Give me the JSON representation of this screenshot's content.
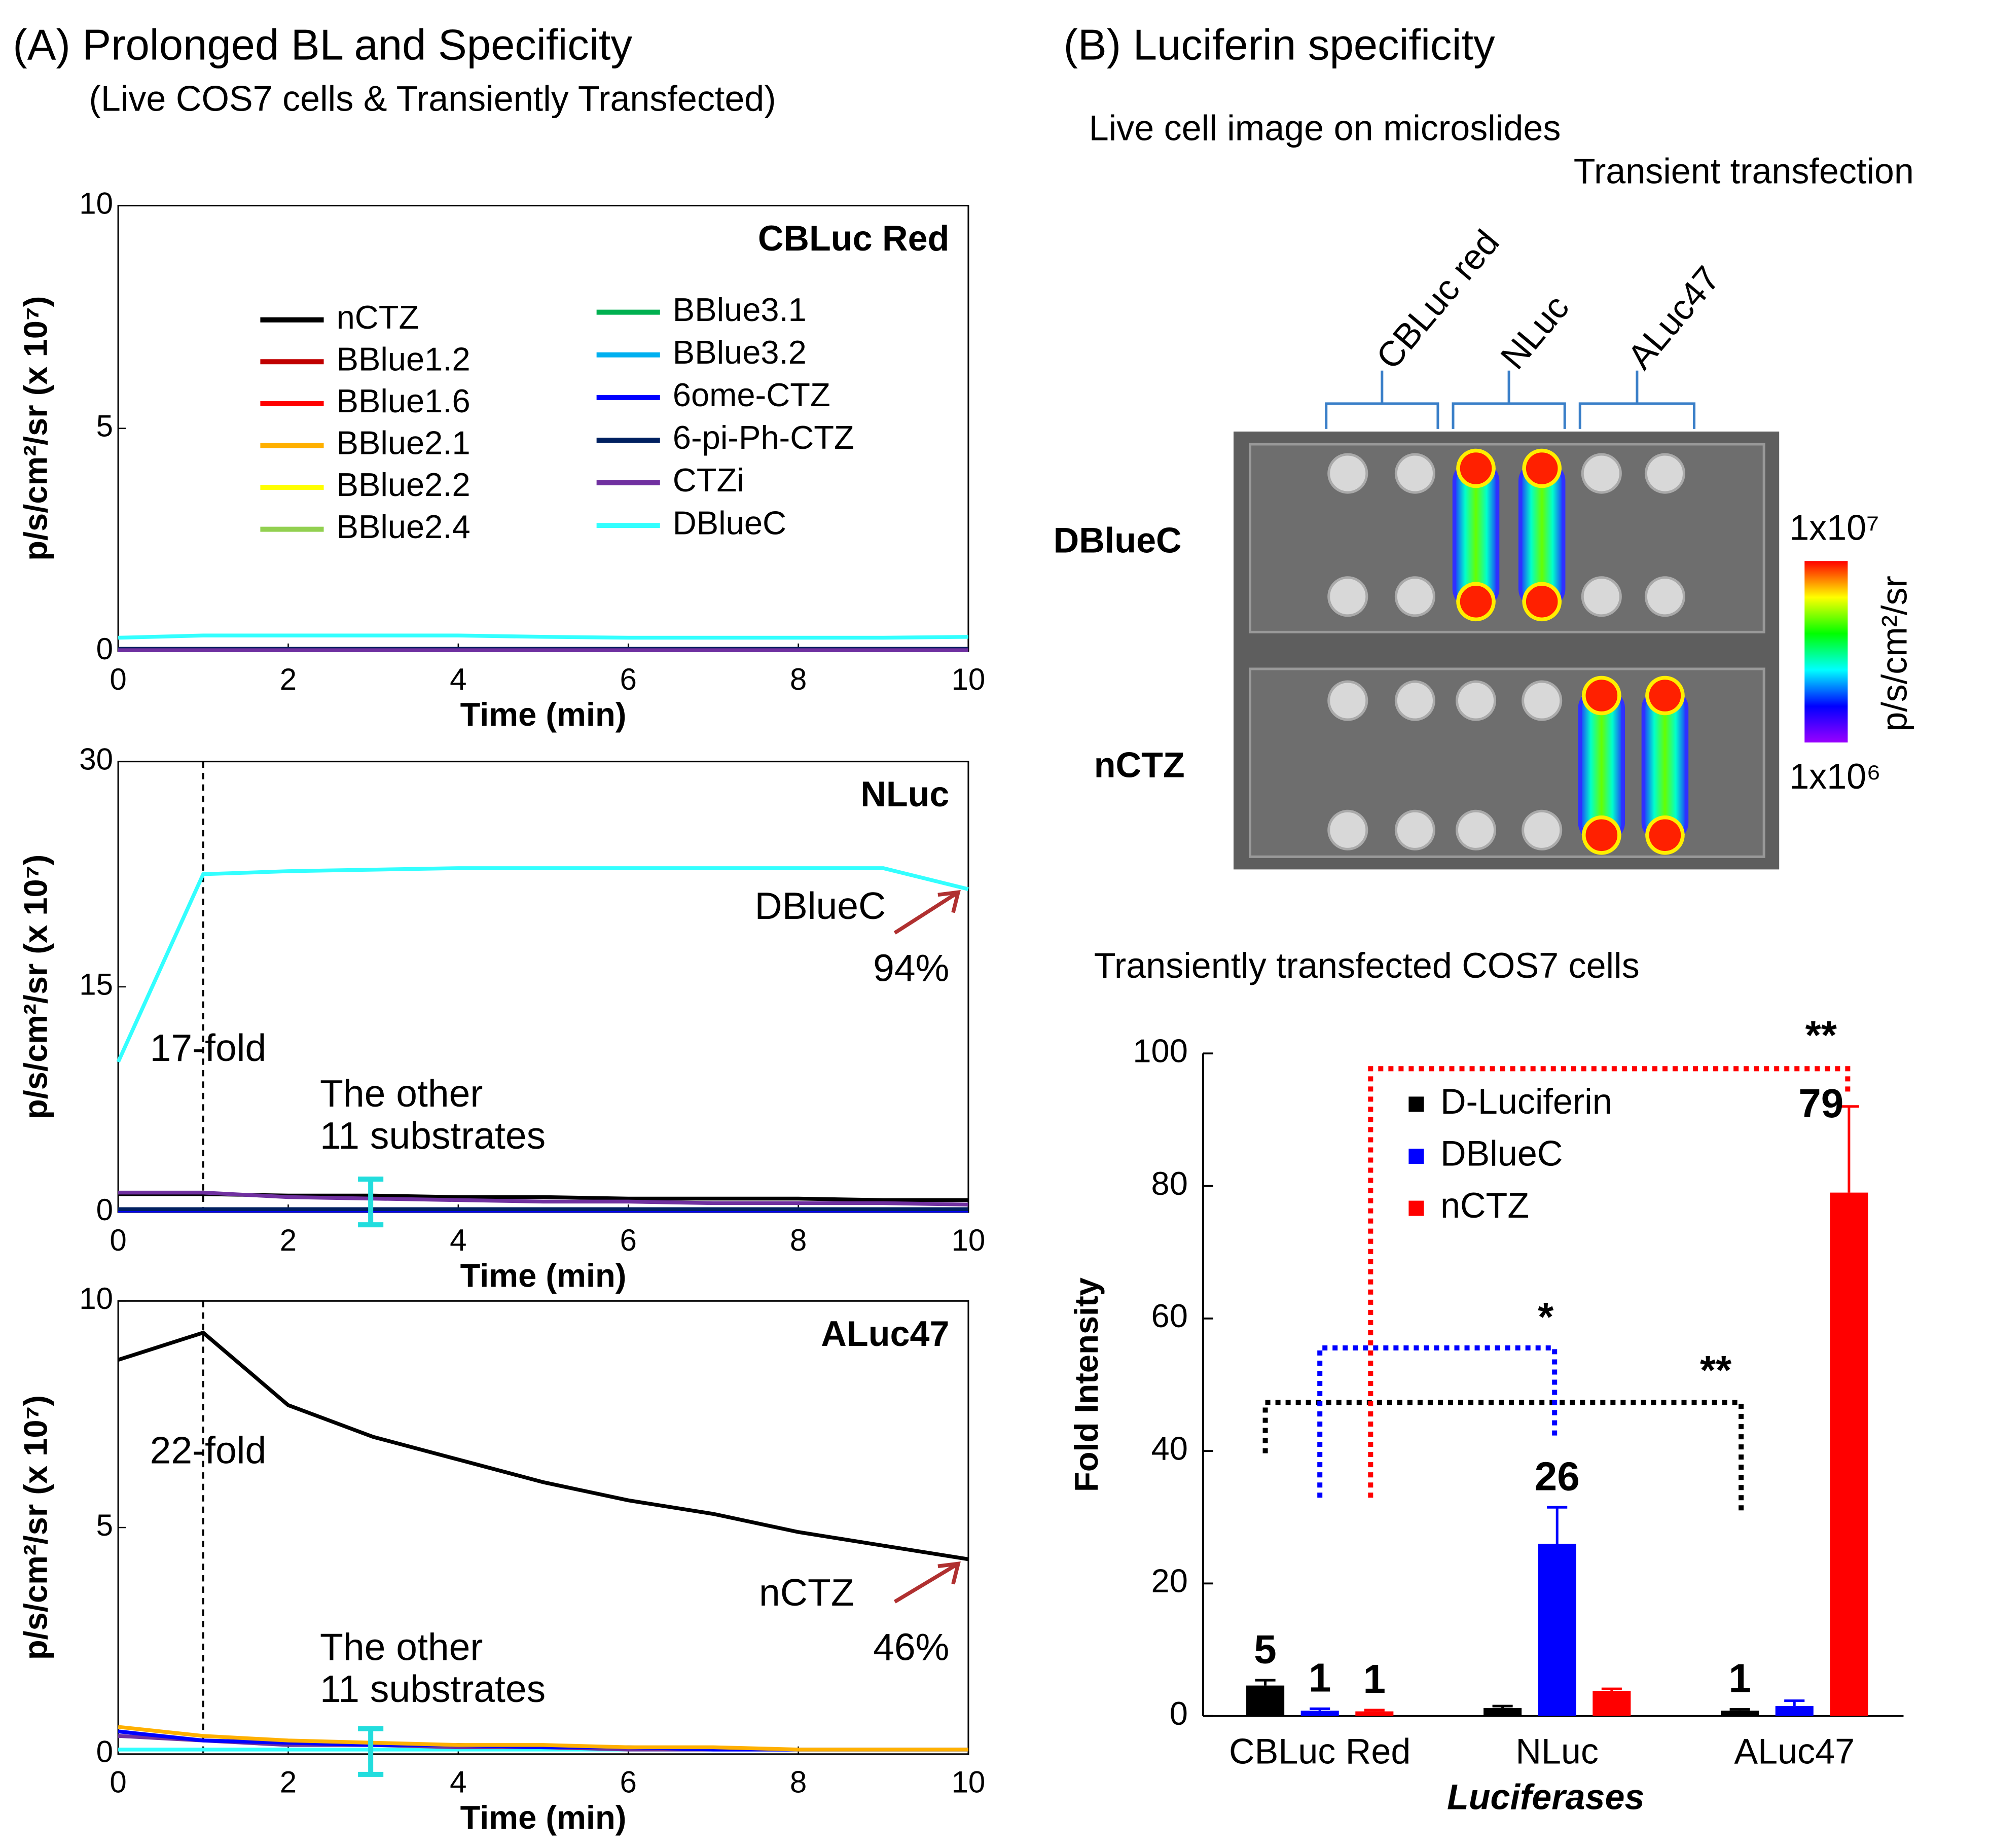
{
  "panel_a": {
    "title": "(A) Prolonged BL and Specificity",
    "subtitle": "(Live COS7 cells & Transiently Transfected)"
  },
  "panel_b": {
    "title": "(B) Luciferin specificity",
    "image_caption": "Live cell image on microslides",
    "image_subtitle": "Transient transfection",
    "columns": [
      "CBLuc red",
      "NLuc",
      "ALuc47"
    ],
    "rows": [
      "DBlueC",
      "nCTZ"
    ],
    "colorbar": {
      "max_label": "1x10⁷",
      "min_label": "1x10⁶",
      "label": "p/s/cm²/sr"
    }
  },
  "chart_data": [
    {
      "type": "line",
      "title": "CBLuc Red",
      "xlabel": "Time (min)",
      "ylabel": "p/s/cm²/sr (x 10⁷)",
      "x": [
        0,
        1,
        2,
        3,
        4,
        5,
        6,
        7,
        8,
        9,
        10
      ],
      "xlim": [
        0,
        10
      ],
      "xticks": [
        0,
        2,
        4,
        6,
        8,
        10
      ],
      "ylim": [
        0,
        10
      ],
      "yticks": [
        0,
        5,
        10
      ],
      "series": [
        {
          "name": "nCTZ",
          "color": "#000000",
          "values": [
            0.05,
            0.05,
            0.05,
            0.05,
            0.05,
            0.05,
            0.05,
            0.05,
            0.05,
            0.05,
            0.05
          ]
        },
        {
          "name": "BBlue1.2",
          "color": "#c00000",
          "values": [
            0.02,
            0.02,
            0.02,
            0.02,
            0.02,
            0.02,
            0.02,
            0.02,
            0.02,
            0.02,
            0.02
          ]
        },
        {
          "name": "BBlue1.6",
          "color": "#ff0000",
          "values": [
            0.02,
            0.02,
            0.02,
            0.02,
            0.02,
            0.02,
            0.02,
            0.02,
            0.02,
            0.02,
            0.02
          ]
        },
        {
          "name": "BBlue2.1",
          "color": "#ffb000",
          "values": [
            0.02,
            0.02,
            0.02,
            0.02,
            0.02,
            0.02,
            0.02,
            0.02,
            0.02,
            0.02,
            0.02
          ]
        },
        {
          "name": "BBlue2.2",
          "color": "#ffff00",
          "values": [
            0.02,
            0.02,
            0.02,
            0.02,
            0.02,
            0.02,
            0.02,
            0.02,
            0.02,
            0.02,
            0.02
          ]
        },
        {
          "name": "BBlue2.4",
          "color": "#92d050",
          "values": [
            0.02,
            0.02,
            0.02,
            0.02,
            0.02,
            0.02,
            0.02,
            0.02,
            0.02,
            0.02,
            0.02
          ]
        },
        {
          "name": "BBlue3.1",
          "color": "#00b050",
          "values": [
            0.02,
            0.02,
            0.02,
            0.02,
            0.02,
            0.02,
            0.02,
            0.02,
            0.02,
            0.02,
            0.02
          ]
        },
        {
          "name": "BBlue3.2",
          "color": "#00b0f0",
          "values": [
            0.02,
            0.02,
            0.02,
            0.02,
            0.02,
            0.02,
            0.02,
            0.02,
            0.02,
            0.02,
            0.02
          ]
        },
        {
          "name": "6ome-CTZ",
          "color": "#0000ff",
          "values": [
            0.02,
            0.02,
            0.02,
            0.02,
            0.02,
            0.02,
            0.02,
            0.02,
            0.02,
            0.02,
            0.02
          ]
        },
        {
          "name": "6-pi-Ph-CTZ",
          "color": "#002060",
          "values": [
            0.05,
            0.05,
            0.05,
            0.05,
            0.05,
            0.05,
            0.05,
            0.05,
            0.05,
            0.05,
            0.05
          ]
        },
        {
          "name": "CTZi",
          "color": "#7030a0",
          "values": [
            0.02,
            0.02,
            0.02,
            0.02,
            0.02,
            0.02,
            0.02,
            0.02,
            0.02,
            0.02,
            0.02
          ]
        },
        {
          "name": "DBlueC",
          "color": "#33ffff",
          "values": [
            0.3,
            0.35,
            0.35,
            0.35,
            0.35,
            0.32,
            0.3,
            0.3,
            0.3,
            0.3,
            0.32
          ]
        }
      ]
    },
    {
      "type": "line",
      "title": "NLuc",
      "xlabel": "Time (min)",
      "ylabel": "p/s/cm²/sr (x 10⁷)",
      "x": [
        0,
        1,
        2,
        3,
        4,
        5,
        6,
        7,
        8,
        9,
        10
      ],
      "xlim": [
        0,
        10
      ],
      "xticks": [
        0,
        2,
        4,
        6,
        8,
        10
      ],
      "ylim": [
        0,
        30
      ],
      "yticks": [
        0,
        15,
        30
      ],
      "vline": 1,
      "annotations": [
        {
          "text": "17-fold",
          "color": "#000000"
        },
        {
          "text": "The other",
          "color": "#22cccc"
        },
        {
          "text": "11 substrates",
          "color": "#22cccc"
        },
        {
          "text": "DBlueC",
          "color": "#22cccc"
        },
        {
          "text": "94%",
          "color": "#c8383a"
        }
      ],
      "series": [
        {
          "color": "#0000ff",
          "values": [
            0.1,
            0.1,
            0.1,
            0.1,
            0.1,
            0.1,
            0.1,
            0.1,
            0.1,
            0.1,
            0.1
          ]
        },
        {
          "color": "#002060",
          "values": [
            0.2,
            0.2,
            0.2,
            0.2,
            0.2,
            0.2,
            0.2,
            0.2,
            0.2,
            0.2,
            0.2
          ]
        },
        {
          "color": "#000000",
          "values": [
            1.2,
            1.2,
            1.1,
            1.1,
            1.0,
            1.0,
            0.9,
            0.9,
            0.9,
            0.8,
            0.8
          ]
        },
        {
          "color": "#7030a0",
          "values": [
            1.3,
            1.3,
            1.0,
            0.9,
            0.8,
            0.7,
            0.7,
            0.6,
            0.6,
            0.6,
            0.5
          ]
        },
        {
          "color": "#33ffff",
          "values": [
            10,
            22.5,
            22.7,
            22.8,
            22.9,
            22.9,
            22.9,
            22.9,
            22.9,
            22.9,
            21.5
          ]
        }
      ]
    },
    {
      "type": "line",
      "title": "ALuc47",
      "xlabel": "Time (min)",
      "ylabel": "p/s/cm²/sr (x 10⁷)",
      "x": [
        0,
        1,
        2,
        3,
        4,
        5,
        6,
        7,
        8,
        9,
        10
      ],
      "xlim": [
        0,
        10
      ],
      "xticks": [
        0,
        2,
        4,
        6,
        8,
        10
      ],
      "ylim": [
        0,
        10
      ],
      "yticks": [
        0,
        5,
        10
      ],
      "vline": 1,
      "annotations": [
        {
          "text": "22-fold",
          "color": "#000000"
        },
        {
          "text": "The other",
          "color": "#22cccc"
        },
        {
          "text": "11 substrates",
          "color": "#22cccc"
        },
        {
          "text": "nCTZ",
          "color": "#000000"
        },
        {
          "text": "46%",
          "color": "#c8383a"
        }
      ],
      "series": [
        {
          "color": "#33ffff",
          "values": [
            0.1,
            0.1,
            0.1,
            0.1,
            0.1,
            0.1,
            0.1,
            0.1,
            0.1,
            0.1,
            0.1
          ]
        },
        {
          "color": "#7030a0",
          "values": [
            0.4,
            0.3,
            0.2,
            0.2,
            0.15,
            0.15,
            0.1,
            0.1,
            0.1,
            0.1,
            0.1
          ]
        },
        {
          "color": "#0000ff",
          "values": [
            0.5,
            0.3,
            0.25,
            0.2,
            0.2,
            0.15,
            0.15,
            0.1,
            0.1,
            0.1,
            0.1
          ]
        },
        {
          "color": "#ffb000",
          "values": [
            0.6,
            0.4,
            0.3,
            0.25,
            0.2,
            0.2,
            0.15,
            0.15,
            0.1,
            0.1,
            0.1
          ]
        },
        {
          "color": "#000000",
          "values": [
            8.7,
            9.3,
            7.7,
            7.0,
            6.5,
            6.0,
            5.6,
            5.3,
            4.9,
            4.6,
            4.3
          ]
        }
      ]
    },
    {
      "type": "bar",
      "title": "Transiently transfected COS7 cells",
      "xlabel": "Luciferases",
      "ylabel": "Fold Intensity",
      "categories": [
        "CBLuc Red",
        "NLuc",
        "ALuc47"
      ],
      "ylim": [
        0,
        100
      ],
      "yticks": [
        0,
        20,
        40,
        60,
        80,
        100
      ],
      "series": [
        {
          "name": "D-Luciferin",
          "color": "#000000",
          "values": [
            4.6,
            1.2,
            0.8
          ],
          "errors": [
            0.8,
            0.3,
            0.2
          ],
          "value_labels": [
            "5",
            null,
            "1"
          ]
        },
        {
          "name": "DBlueC",
          "color": "#0000ff",
          "values": [
            0.8,
            26,
            1.5
          ],
          "errors": [
            0.3,
            5.5,
            0.8
          ],
          "value_labels": [
            "1",
            "26",
            null
          ]
        },
        {
          "name": "nCTZ",
          "color": "#ff0000",
          "values": [
            0.7,
            3.8,
            79
          ],
          "errors": [
            0.2,
            0.3,
            13
          ],
          "value_labels": [
            "1",
            null,
            "79"
          ]
        }
      ],
      "significance": [
        {
          "label": "**",
          "color": "#000000"
        },
        {
          "label": "*",
          "color": "#0000ff"
        },
        {
          "label": "**",
          "color": "#ff0000"
        }
      ]
    }
  ]
}
